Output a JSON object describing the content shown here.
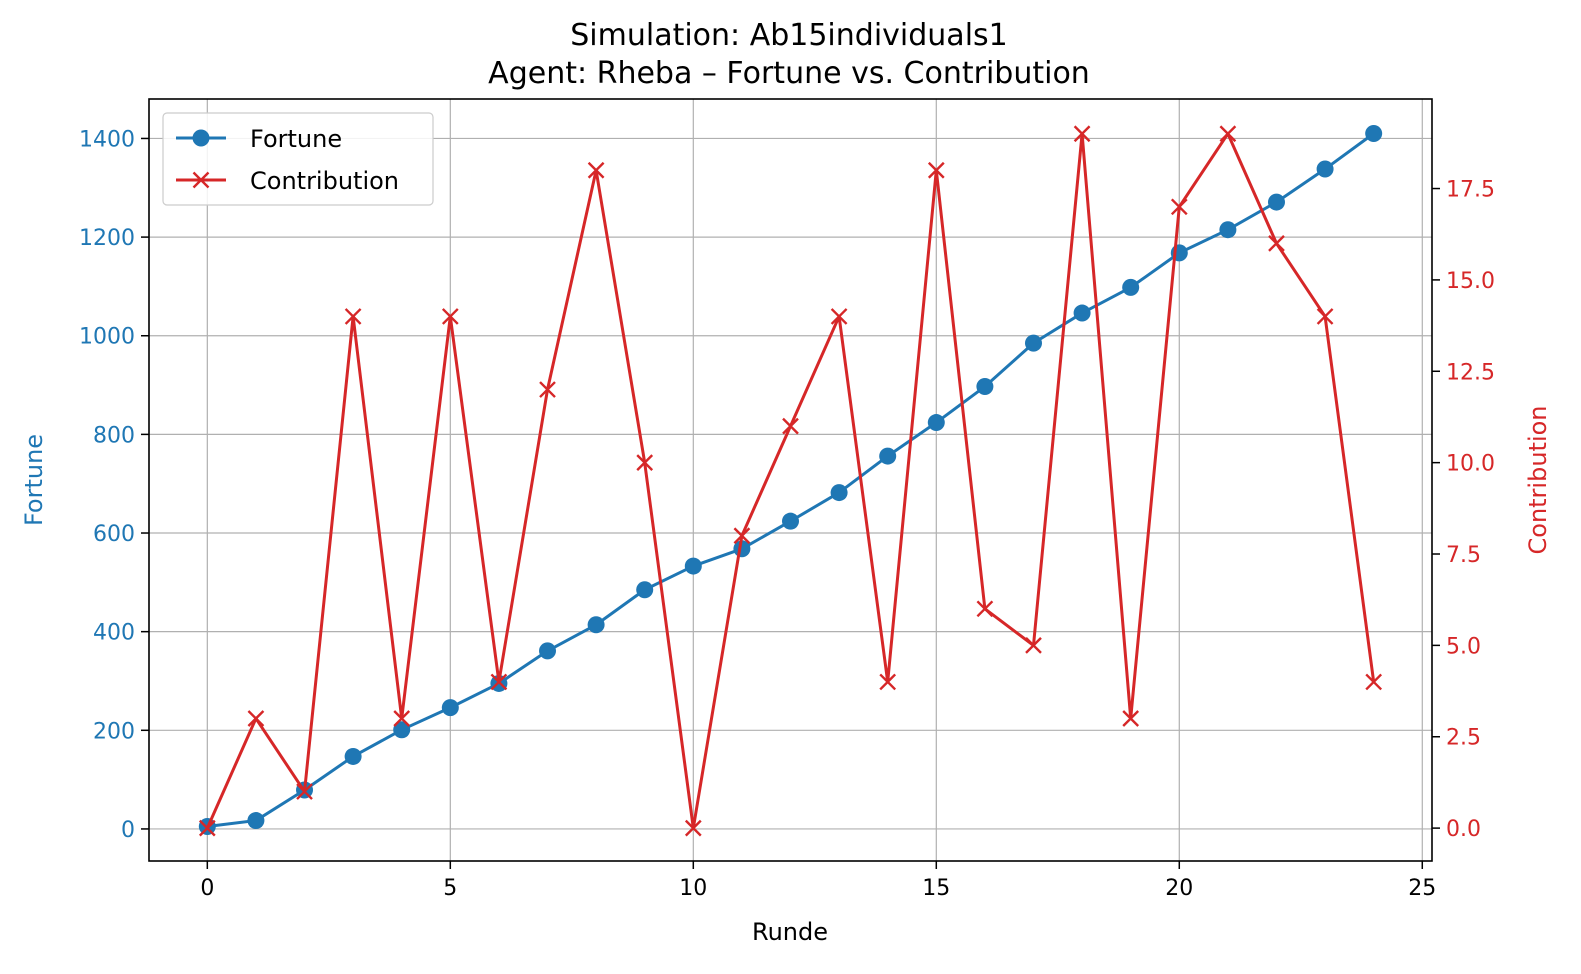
{
  "chart_data": {
    "type": "line",
    "title": "Simulation: Ab15individuals1",
    "subtitle": "Agent: Rheba – Fortune vs. Contribution",
    "xlabel": "Runde",
    "ylabel_left": "Fortune",
    "ylabel_right": "Contribution",
    "x": [
      0,
      1,
      2,
      3,
      4,
      5,
      6,
      7,
      8,
      9,
      10,
      11,
      12,
      13,
      14,
      15,
      16,
      17,
      18,
      19,
      20,
      21,
      22,
      23,
      24
    ],
    "xlim": [
      -1.2,
      25.2
    ],
    "x_ticks": [
      0,
      5,
      10,
      15,
      20,
      25
    ],
    "ylim_left": [
      -65,
      1480
    ],
    "y_ticks_left": [
      0,
      200,
      400,
      600,
      800,
      1000,
      1200,
      1400
    ],
    "ylim_right": [
      -0.9,
      19.95
    ],
    "y_ticks_right": [
      "0.0",
      "2.5",
      "5.0",
      "7.5",
      "10.0",
      "12.5",
      "15.0",
      "17.5"
    ],
    "grid": true,
    "legend_position": "upper-left",
    "series": [
      {
        "name": "Fortune",
        "axis": "left",
        "color": "#1f77b4",
        "marker": "circle",
        "values": [
          5,
          17,
          79,
          147,
          201,
          246,
          295,
          361,
          414,
          485,
          533,
          568,
          624,
          682,
          756,
          824,
          897,
          985,
          1046,
          1098,
          1168,
          1215,
          1271,
          1338,
          1410
        ]
      },
      {
        "name": "Contribution",
        "axis": "right",
        "color": "#d62728",
        "marker": "x",
        "values": [
          0,
          3,
          1,
          14,
          3,
          14,
          4,
          12,
          18,
          10,
          0,
          8,
          11,
          14,
          4,
          18,
          6,
          5,
          19,
          3,
          17,
          19,
          16,
          14,
          4
        ]
      }
    ]
  }
}
